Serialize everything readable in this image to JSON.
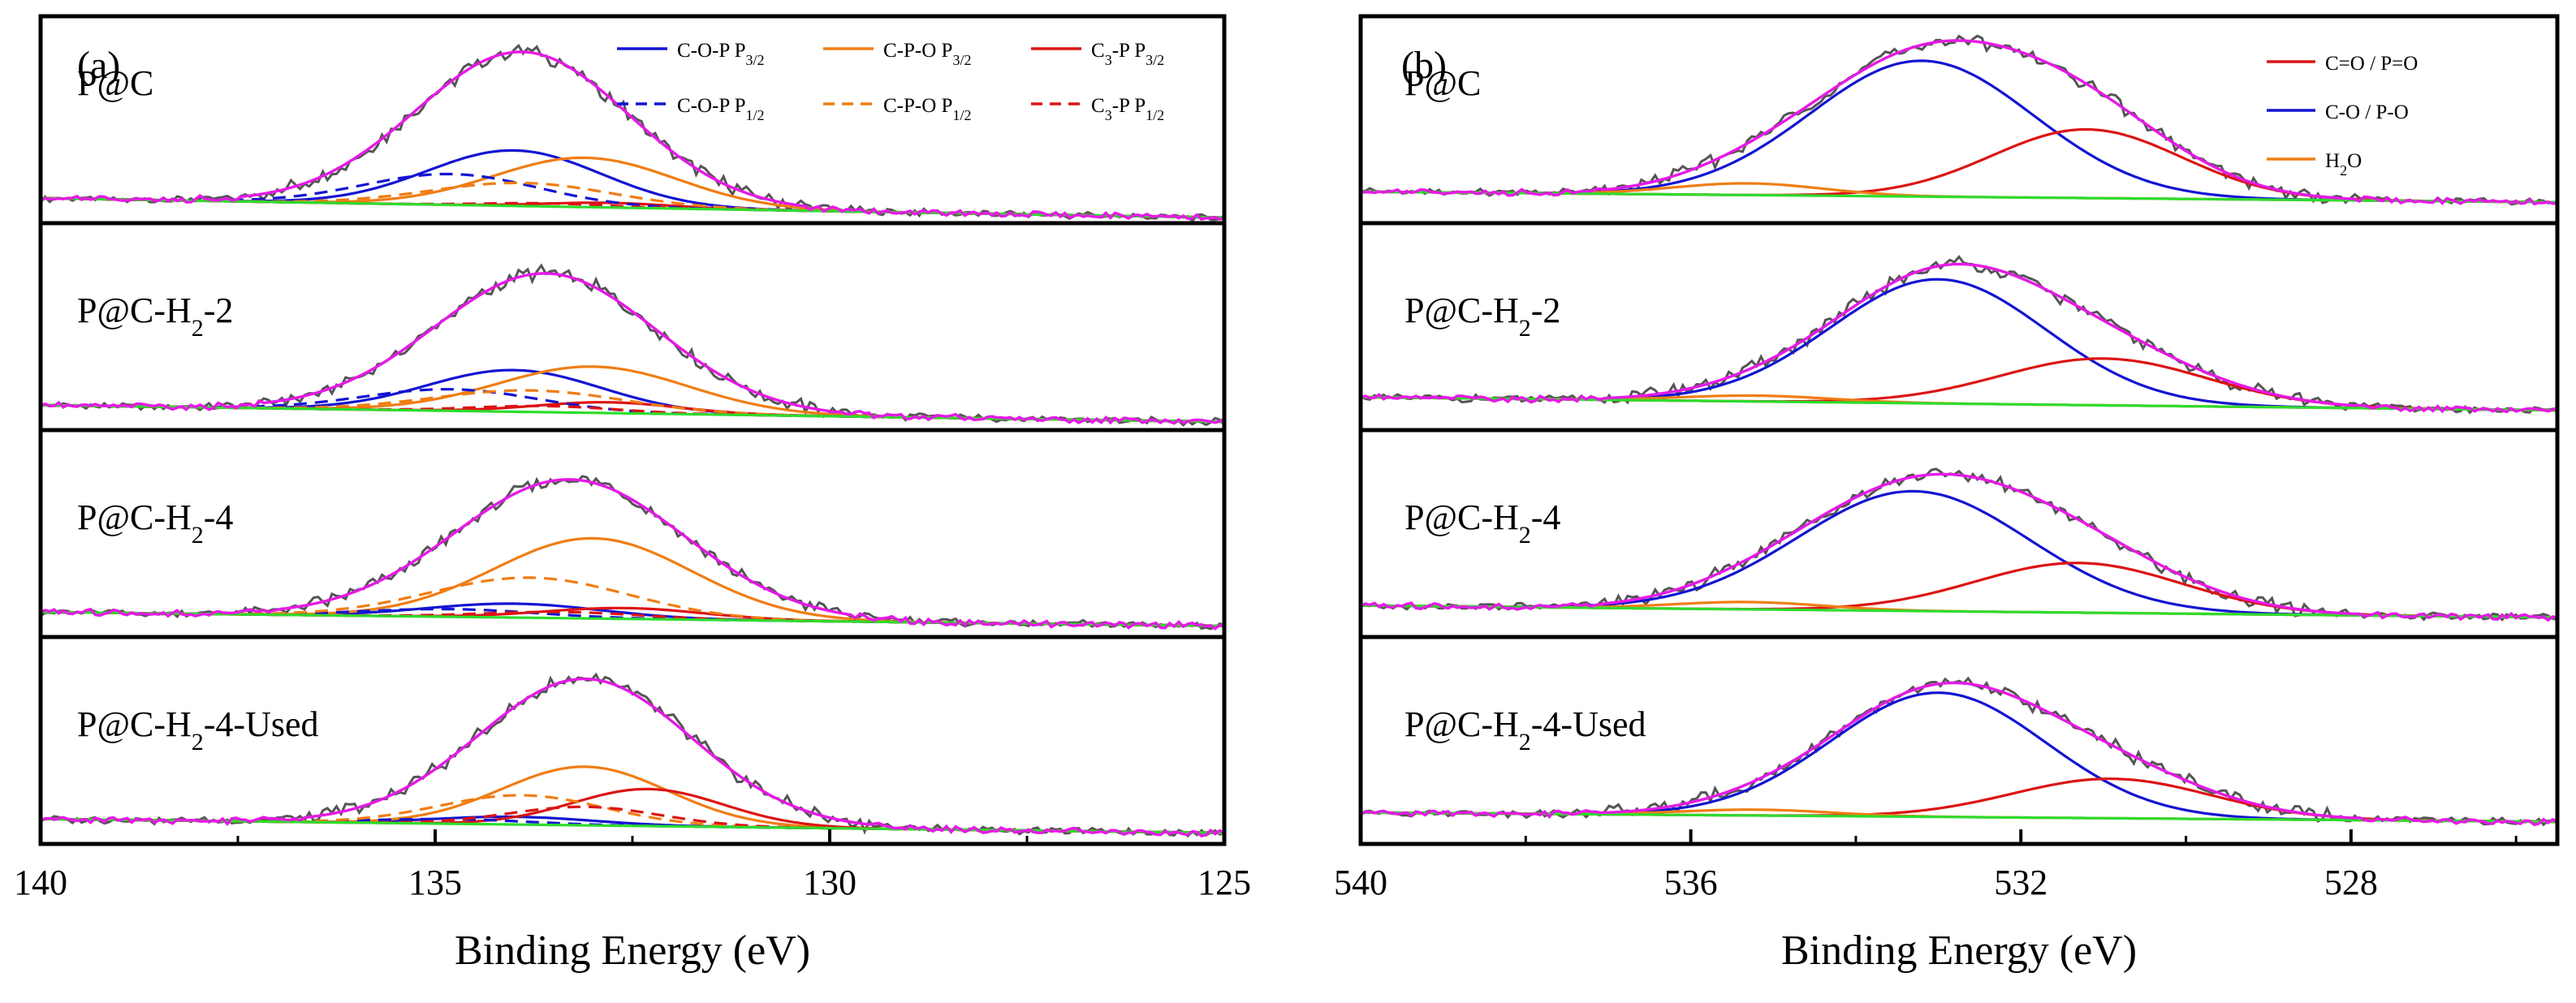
{
  "chart_data": [
    {
      "type": "line",
      "id": "a",
      "panel_label": "(a)",
      "xlabel": "Binding Energy (eV)",
      "ylabel": "",
      "xlim": [
        140,
        125
      ],
      "x_reversed": true,
      "xticks": [
        {
          "value": 140,
          "label": "140"
        },
        {
          "value": 135,
          "label": "135"
        },
        {
          "value": 130,
          "label": "130"
        },
        {
          "value": 125,
          "label": "125"
        }
      ],
      "legend": [
        {
          "key": "cop32",
          "text": "C-O-P",
          "sub": "3/2",
          "pre": "",
          "mid": " P",
          "color": "#1414d2",
          "dash": false
        },
        {
          "key": "cpo32",
          "text": "C-P-O",
          "sub": "3/2",
          "pre": "",
          "mid": " P",
          "color": "#f07d14",
          "dash": false
        },
        {
          "key": "c3p32",
          "text": "-P P",
          "sub": "3/2",
          "pre": "C3",
          "mid": "",
          "color": "#dc1414",
          "dash": false
        },
        {
          "key": "cop12",
          "text": "C-O-P",
          "sub": "1/2",
          "pre": "",
          "mid": " P",
          "color": "#1414d2",
          "dash": true
        },
        {
          "key": "cpo12",
          "text": "C-P-O",
          "sub": "1/2",
          "pre": "",
          "mid": " P",
          "color": "#f07d14",
          "dash": true
        },
        {
          "key": "c3p12",
          "text": "-P P",
          "sub": "1/2",
          "pre": "C3",
          "mid": "",
          "color": "#dc1414",
          "dash": true
        }
      ],
      "colors": {
        "raw": "#555555",
        "envelope": "#e619e6",
        "background": "#2ddc2d",
        "frame": "#000000"
      },
      "rows": [
        {
          "label": "P@C",
          "sub": "",
          "suffix": "",
          "bg_left": 0.02,
          "bg_right": -0.12,
          "envelope": {
            "center": 133.9,
            "width": 1.35,
            "height": 1.0
          },
          "components": [
            {
              "key": "cop32",
              "center": 134.0,
              "width": 1.1,
              "height": 0.36
            },
            {
              "key": "cpo32",
              "center": 133.1,
              "width": 1.15,
              "height": 0.32
            },
            {
              "key": "c3p32",
              "center": 132.8,
              "width": 0.8,
              "height": 0.03
            },
            {
              "key": "cop12",
              "center": 134.8,
              "width": 1.1,
              "height": 0.2
            },
            {
              "key": "cpo12",
              "center": 133.9,
              "width": 1.15,
              "height": 0.15
            },
            {
              "key": "c3p12",
              "center": 133.6,
              "width": 0.8,
              "height": 0.02
            }
          ]
        },
        {
          "label": "P@C-H",
          "sub": "2",
          "suffix": "-2",
          "bg_left": 0.02,
          "bg_right": -0.1,
          "envelope": {
            "center": 133.6,
            "width": 1.4,
            "height": 0.9
          },
          "components": [
            {
              "key": "cop32",
              "center": 134.0,
              "width": 1.1,
              "height": 0.27
            },
            {
              "key": "cpo32",
              "center": 133.0,
              "width": 1.2,
              "height": 0.3
            },
            {
              "key": "c3p32",
              "center": 132.8,
              "width": 0.9,
              "height": 0.07
            },
            {
              "key": "cop12",
              "center": 134.8,
              "width": 1.1,
              "height": 0.14
            },
            {
              "key": "cpo12",
              "center": 133.8,
              "width": 1.2,
              "height": 0.14
            },
            {
              "key": "c3p12",
              "center": 133.6,
              "width": 0.9,
              "height": 0.04
            }
          ]
        },
        {
          "label": "P@C-H",
          "sub": "2",
          "suffix": "-4",
          "bg_left": 0.02,
          "bg_right": -0.08,
          "envelope": {
            "center": 133.3,
            "width": 1.45,
            "height": 0.9
          },
          "components": [
            {
              "key": "cop32",
              "center": 134.0,
              "width": 1.1,
              "height": 0.09
            },
            {
              "key": "cpo32",
              "center": 133.0,
              "width": 1.25,
              "height": 0.52
            },
            {
              "key": "c3p32",
              "center": 132.6,
              "width": 1.0,
              "height": 0.07
            },
            {
              "key": "cop12",
              "center": 134.8,
              "width": 1.1,
              "height": 0.05
            },
            {
              "key": "cpo12",
              "center": 133.8,
              "width": 1.25,
              "height": 0.26
            },
            {
              "key": "c3p12",
              "center": 133.4,
              "width": 1.0,
              "height": 0.04
            }
          ]
        },
        {
          "label": "P@C-H",
          "sub": "2",
          "suffix": "-4-Used",
          "bg_left": 0.02,
          "bg_right": -0.08,
          "envelope": {
            "center": 133.1,
            "width": 1.35,
            "height": 0.95
          },
          "components": [
            {
              "key": "cop32",
              "center": 134.0,
              "width": 1.0,
              "height": 0.05
            },
            {
              "key": "cpo32",
              "center": 133.1,
              "width": 1.05,
              "height": 0.38
            },
            {
              "key": "c3p32",
              "center": 132.3,
              "width": 0.95,
              "height": 0.24
            },
            {
              "key": "cop12",
              "center": 134.8,
              "width": 1.0,
              "height": 0.03
            },
            {
              "key": "cpo12",
              "center": 133.9,
              "width": 1.05,
              "height": 0.19
            },
            {
              "key": "c3p12",
              "center": 133.1,
              "width": 0.95,
              "height": 0.12
            }
          ]
        }
      ]
    },
    {
      "type": "line",
      "id": "b",
      "panel_label": "(b)",
      "xlabel": "Binding Energy (eV)",
      "ylabel": "",
      "xlim": [
        540,
        525.5
      ],
      "x_reversed": true,
      "xticks": [
        {
          "value": 540,
          "label": "540"
        },
        {
          "value": 536,
          "label": "536"
        },
        {
          "value": 532,
          "label": "532"
        },
        {
          "value": 528,
          "label": "528"
        }
      ],
      "legend": [
        {
          "key": "co",
          "text": "C=O / P=O",
          "sub": "",
          "pre": "",
          "mid": "",
          "color": "#dc1414",
          "dash": false
        },
        {
          "key": "cop",
          "text": "C-O / P-O",
          "sub": "",
          "pre": "",
          "mid": "",
          "color": "#1414d2",
          "dash": false
        },
        {
          "key": "h2o",
          "text": "H",
          "sub": "2",
          "pre": "",
          "mid": "O",
          "color": "#f07d14",
          "dash": false
        }
      ],
      "colors": {
        "raw": "#555555",
        "envelope": "#e619e6",
        "background": "#2ddc2d",
        "frame": "#000000"
      },
      "rows": [
        {
          "label": "P@C",
          "sub": "",
          "suffix": "",
          "bg_left": 0.01,
          "bg_right": -0.07,
          "envelope": null,
          "components": [
            {
              "key": "cop",
              "center": 533.2,
              "width": 1.35,
              "height": 0.93
            },
            {
              "key": "co",
              "center": 531.2,
              "width": 1.15,
              "height": 0.47
            },
            {
              "key": "h2o",
              "center": 535.3,
              "width": 0.9,
              "height": 0.08
            }
          ]
        },
        {
          "label": "P@C-H",
          "sub": "2",
          "suffix": "-2",
          "bg_left": 0.02,
          "bg_right": -0.08,
          "envelope": null,
          "components": [
            {
              "key": "cop",
              "center": 533.0,
              "width": 1.3,
              "height": 0.85
            },
            {
              "key": "co",
              "center": 531.0,
              "width": 1.25,
              "height": 0.32
            },
            {
              "key": "h2o",
              "center": 535.2,
              "width": 0.9,
              "height": 0.04
            }
          ]
        },
        {
          "label": "P@C-H",
          "sub": "2",
          "suffix": "-4",
          "bg_left": 0.01,
          "bg_right": -0.08,
          "envelope": null,
          "components": [
            {
              "key": "cop",
              "center": 533.3,
              "width": 1.4,
              "height": 0.82
            },
            {
              "key": "co",
              "center": 531.3,
              "width": 1.25,
              "height": 0.34
            },
            {
              "key": "h2o",
              "center": 535.3,
              "width": 0.9,
              "height": 0.05
            }
          ]
        },
        {
          "label": "P@C-H",
          "sub": "2",
          "suffix": "-4-Used",
          "bg_left": 0.01,
          "bg_right": -0.06,
          "envelope": null,
          "components": [
            {
              "key": "cop",
              "center": 533.0,
              "width": 1.3,
              "height": 0.85
            },
            {
              "key": "co",
              "center": 530.9,
              "width": 1.2,
              "height": 0.27
            },
            {
              "key": "h2o",
              "center": 535.2,
              "width": 0.9,
              "height": 0.04
            }
          ]
        }
      ]
    }
  ]
}
